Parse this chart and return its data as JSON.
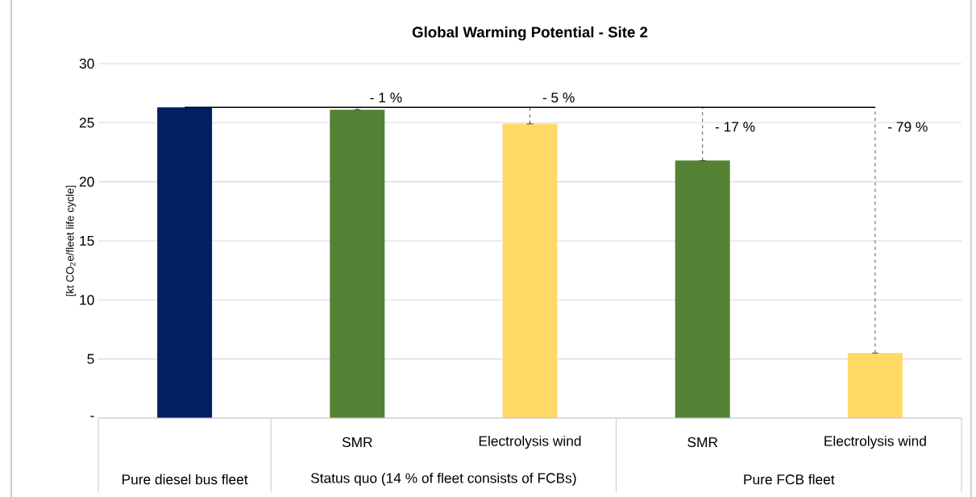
{
  "chart_data": {
    "type": "bar",
    "title": "Global Warming Potential - Site 2",
    "ylabel": "[kt CO$_{2}$e/fleet life cycle]",
    "categories": [
      null,
      "SMR",
      "Electrolysis wind",
      "SMR",
      "Electrolysis wind"
    ],
    "values": [
      26.3,
      26.1,
      24.9,
      21.8,
      5.5
    ],
    "colors": [
      "#002060",
      "#548235",
      "#ffd966",
      "#548235",
      "#ffd966"
    ],
    "errors": [
      null,
      [
        26.1,
        26.3
      ],
      [
        24.9,
        26.3
      ],
      [
        21.8,
        26.3
      ],
      [
        5.5,
        26.3
      ]
    ],
    "annotations": [
      "Pure diesel bus fleet",
      "Status quo (14 % of fleet consists of FCBs)",
      "Pure FCB fleet",
      "- 1 %",
      "- 5 %",
      "- 17 %",
      "- 79 %"
    ],
    "ref_lines": [
      {
        "axis": "y",
        "value": 26.3,
        "color": "#000000"
      }
    ],
    "ylim": [
      0,
      30
    ],
    "yticks": [
      {
        "value": 0,
        "label": "-"
      },
      5,
      10,
      15,
      20,
      25,
      30
    ],
    "grid": "y"
  }
}
